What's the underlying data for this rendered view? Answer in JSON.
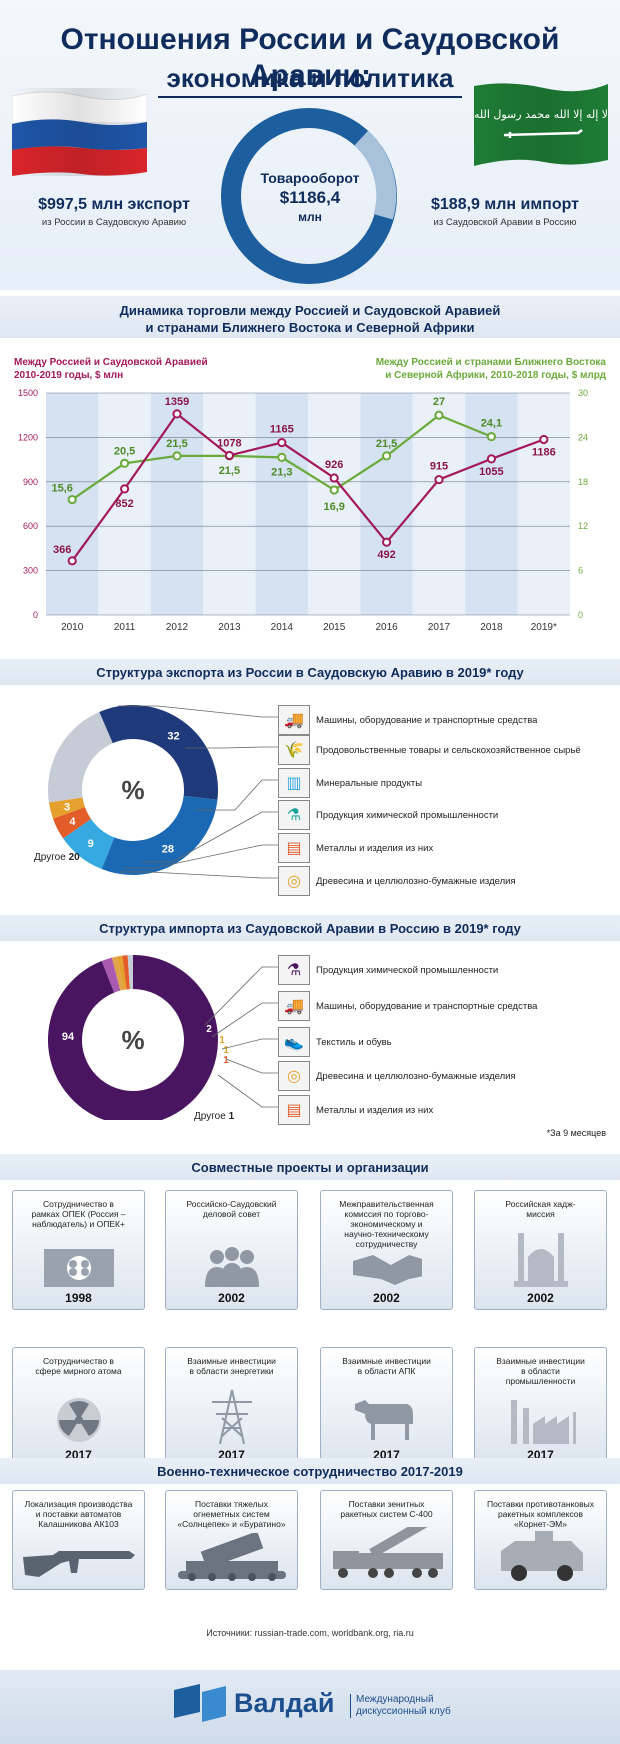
{
  "header": {
    "title_line1": "Отношения России и Саудовской Аравии:",
    "title_line2": "экономика и политика",
    "export_amount": "$997,5 млн экспорт",
    "export_sub": "из России в Саудовскую Аравию",
    "turnover_label": "Товарооборот",
    "turnover_value": "$1186,4",
    "turnover_unit": "млн",
    "import_amount": "$188,9 млн импорт",
    "import_sub": "из Саудовской Аравии в Россию",
    "flag_text": "لا إله إلا الله محمد رسول الله"
  },
  "trade": {
    "title_line1": "Динамика торговли между Россией и Саудовской Аравией",
    "title_line2": "и странами Ближнего Востока и Северной Африки",
    "left_legend_line1": "Между Россией и Саудовской Аравией",
    "left_legend_line2": "2010-2019 годы, $ млн",
    "right_legend_line1": "Между Россией и странами Ближнего Востока",
    "right_legend_line2": "и Северной Африки, 2010-2018 годы, $ млрд"
  },
  "chart_data": {
    "type": "line",
    "x": [
      "2010",
      "2011",
      "2012",
      "2013",
      "2014",
      "2015",
      "2016",
      "2017",
      "2018",
      "2019*"
    ],
    "series": [
      {
        "name": "Между Россией и Саудовской Аравией 2010-2019 годы, $ млн",
        "axis": "left",
        "color": "#a3195b",
        "values": [
          366,
          852,
          1359,
          1078,
          1165,
          926,
          492,
          915,
          1055,
          1186
        ]
      },
      {
        "name": "Между Россией и странами Ближнего Востока и Северной Африки, 2010-2018 годы, $ млрд",
        "axis": "right",
        "color": "#6aaa3a",
        "values": [
          15.6,
          20.5,
          21.5,
          21.5,
          21.3,
          16.9,
          21.5,
          27,
          24.1,
          null
        ]
      }
    ],
    "y_left": {
      "ticks": [
        "0",
        "300",
        "600",
        "900",
        "1200",
        "1500"
      ],
      "range": [
        0,
        1500
      ]
    },
    "y_right": {
      "ticks": [
        "0",
        "6",
        "12",
        "18",
        "24",
        "30"
      ],
      "range": [
        0,
        30
      ]
    },
    "labels_left": [
      "366",
      "852",
      "1359",
      "1078",
      "1165",
      "926",
      "492",
      "915",
      "1055",
      "1186"
    ],
    "labels_right": [
      "15,6",
      "20,5",
      "21,5",
      "21,5",
      "21,3",
      "16,9",
      "21,5",
      "27",
      "24,1"
    ]
  },
  "export_struct": {
    "title": "Структура экспорта из России в Саудовскую Аравию в 2019* году",
    "center": "%",
    "other_label": "Другое",
    "other_value": "20",
    "segments": [
      {
        "value": "32",
        "color": "#1f3a7a"
      },
      {
        "value": "28",
        "color": "#1b69b5"
      },
      {
        "value": "9",
        "color": "#35a9e0"
      },
      {
        "value": "4",
        "color": "#e35d2a"
      },
      {
        "value": "3",
        "color": "#e5a02e"
      },
      {
        "value": "20",
        "color": "#c5ccd6"
      }
    ],
    "legend": [
      "Машины, оборудование и транспортные средства",
      "Продовольственные товары и сельскохозяйственное сырьё",
      "Минеральные продукты",
      "Продукция химической промышленности",
      "Металлы и изделия из них",
      "Древесина и целлюлозно-бумажные изделия"
    ]
  },
  "import_struct": {
    "title": "Структура импорта из Саудовской Аравии в Россию в 2019* году",
    "center": "%",
    "main_value": "94",
    "small_values": [
      "2",
      "1",
      "1",
      "1"
    ],
    "other_label": "Другое",
    "other_value": "1",
    "legend": [
      "Продукция химической промышленности",
      "Машины, оборудование и транспортные средства",
      "Текстиль и обувь",
      "Древесина и целлюлозно-бумажные изделия",
      "Металлы и изделия из них"
    ],
    "footnote": "*За 9 месяцев"
  },
  "projects": {
    "title": "Совместные проекты и организации",
    "cards": [
      {
        "text": "Сотрудничество в рамках ОПЕК (Россия – наблюдатель) и ОПЕК+",
        "year": "1998",
        "icon": "opec-logo-icon"
      },
      {
        "text": "Российско-Саудовский деловой совет",
        "year": "2002",
        "icon": "people-icon"
      },
      {
        "text": "Межправительственная комиссия по торгово-экономическому и научно-техническому сотрудничеству",
        "year": "2002",
        "icon": "handshake-icon"
      },
      {
        "text": "Российская хадж-миссия",
        "year": "2002",
        "icon": "mosque-icon"
      },
      {
        "text": "Сотрудничество в сфере мирного атома",
        "year": "2017",
        "icon": "radiation-icon"
      },
      {
        "text": "Взаимные инвестиции в области энергетики",
        "year": "2017",
        "icon": "power-tower-icon"
      },
      {
        "text": "Взаимные инвестиции в области АПК",
        "year": "2017",
        "icon": "cow-icon"
      },
      {
        "text": "Взаимные инвестиции в области промышленности",
        "year": "2017",
        "icon": "factory-icon"
      }
    ]
  },
  "military": {
    "title": "Военно-техническое сотрудничество 2017-2019",
    "cards": [
      {
        "text": "Локализация производства и поставки автоматов Калашникова АК103",
        "icon": "rifle-icon"
      },
      {
        "text": "Поставки тяжелых огнеметных систем «Солнцепек» и «Буратино»",
        "icon": "launcher-icon"
      },
      {
        "text": "Поставки зенитных ракетных систем С-400",
        "icon": "s400-icon"
      },
      {
        "text": "Поставки противотанковых ракетных комплексов «Корнет-ЭМ»",
        "icon": "armored-vehicle-icon"
      }
    ]
  },
  "sources": "Источники: russian-trade.com, worldbank.org, ria.ru",
  "footer": {
    "logo": "Валдай",
    "sub_line1": "Международный",
    "sub_line2": "дискуссионный клуб"
  }
}
